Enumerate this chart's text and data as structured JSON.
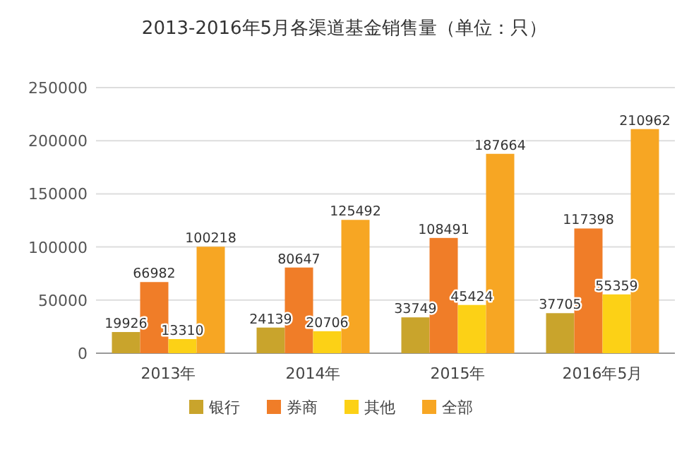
{
  "chart_data": {
    "type": "bar",
    "title": "2013-2016年5月各渠道基金销售量（单位：只）",
    "categories": [
      "2013年",
      "2014年",
      "2015年",
      "2016年5月"
    ],
    "series": [
      {
        "name": "银行",
        "color": "#c9a42c",
        "values": [
          19926,
          24139,
          33749,
          37705
        ]
      },
      {
        "name": "券商",
        "color": "#f07d28",
        "values": [
          66982,
          80647,
          108491,
          117398
        ]
      },
      {
        "name": "其他",
        "color": "#fcd116",
        "values": [
          13310,
          20706,
          45424,
          55359
        ]
      },
      {
        "name": "全部",
        "color": "#f7a623",
        "values": [
          100218,
          125492,
          187664,
          210962
        ]
      }
    ],
    "ylim": [
      0,
      250000
    ],
    "yticks": [
      0,
      50000,
      100000,
      150000,
      200000,
      250000
    ],
    "grid": "y",
    "legend": "bottom",
    "data_labels": true
  }
}
